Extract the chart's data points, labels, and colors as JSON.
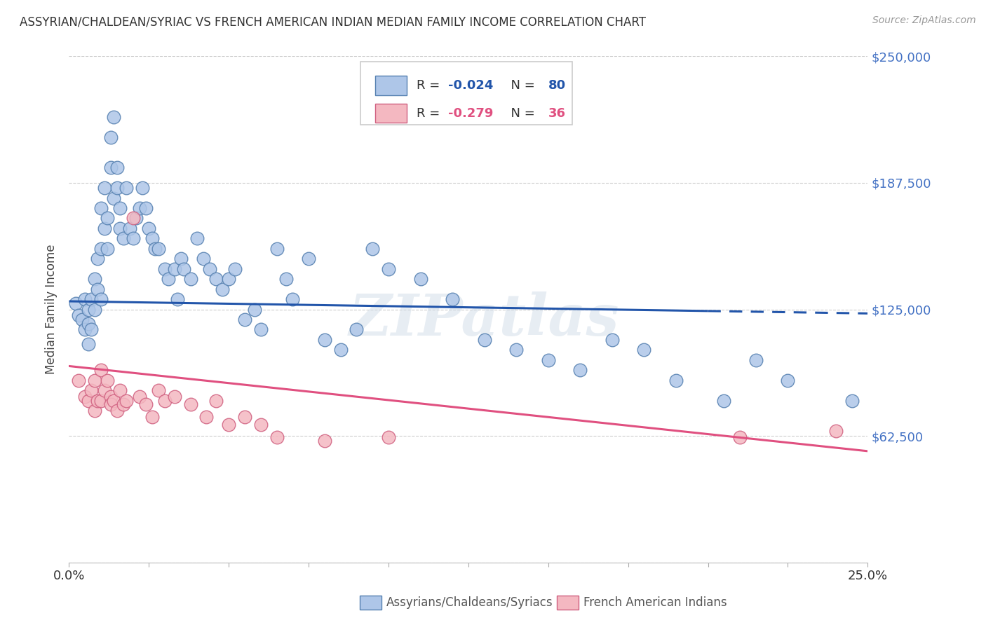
{
  "title": "ASSYRIAN/CHALDEAN/SYRIAC VS FRENCH AMERICAN INDIAN MEDIAN FAMILY INCOME CORRELATION CHART",
  "source": "Source: ZipAtlas.com",
  "ylabel": "Median Family Income",
  "xmin": 0.0,
  "xmax": 0.25,
  "ymin": 0,
  "ymax": 250000,
  "yticks": [
    0,
    62500,
    125000,
    187500,
    250000
  ],
  "ytick_labels": [
    "",
    "$62,500",
    "$125,000",
    "$187,500",
    "$250,000"
  ],
  "xticks": [
    0.0,
    0.025,
    0.05,
    0.075,
    0.1,
    0.125,
    0.15,
    0.175,
    0.2,
    0.225,
    0.25
  ],
  "blue_R": "-0.024",
  "blue_N": "80",
  "pink_R": "-0.279",
  "pink_N": "36",
  "blue_label": "Assyrians/Chaldeans/Syriacs",
  "pink_label": "French American Indians",
  "blue_fill": "#aec6e8",
  "pink_fill": "#f4b8c1",
  "blue_edge": "#5580b0",
  "pink_edge": "#d06080",
  "blue_line": "#2255aa",
  "pink_line": "#e05080",
  "watermark": "ZIPatlas",
  "bg": "#ffffff",
  "blue_trend_x0": 0.0,
  "blue_trend_x1": 0.25,
  "blue_trend_y0": 129000,
  "blue_trend_y1": 123000,
  "pink_trend_x0": 0.0,
  "pink_trend_x1": 0.25,
  "pink_trend_y0": 97000,
  "pink_trend_y1": 55000,
  "blue_x": [
    0.002,
    0.003,
    0.004,
    0.005,
    0.005,
    0.006,
    0.006,
    0.006,
    0.007,
    0.007,
    0.008,
    0.008,
    0.009,
    0.009,
    0.01,
    0.01,
    0.01,
    0.011,
    0.011,
    0.012,
    0.012,
    0.013,
    0.013,
    0.014,
    0.014,
    0.015,
    0.015,
    0.016,
    0.016,
    0.017,
    0.018,
    0.019,
    0.02,
    0.021,
    0.022,
    0.023,
    0.024,
    0.025,
    0.026,
    0.027,
    0.028,
    0.03,
    0.031,
    0.033,
    0.034,
    0.035,
    0.036,
    0.038,
    0.04,
    0.042,
    0.044,
    0.046,
    0.048,
    0.05,
    0.052,
    0.055,
    0.058,
    0.06,
    0.065,
    0.068,
    0.07,
    0.075,
    0.08,
    0.085,
    0.09,
    0.095,
    0.1,
    0.11,
    0.12,
    0.13,
    0.14,
    0.15,
    0.16,
    0.17,
    0.18,
    0.19,
    0.205,
    0.215,
    0.225,
    0.245
  ],
  "blue_y": [
    128000,
    122000,
    120000,
    115000,
    130000,
    125000,
    118000,
    108000,
    130000,
    115000,
    140000,
    125000,
    135000,
    150000,
    130000,
    155000,
    175000,
    165000,
    185000,
    155000,
    170000,
    195000,
    210000,
    180000,
    220000,
    185000,
    195000,
    175000,
    165000,
    160000,
    185000,
    165000,
    160000,
    170000,
    175000,
    185000,
    175000,
    165000,
    160000,
    155000,
    155000,
    145000,
    140000,
    145000,
    130000,
    150000,
    145000,
    140000,
    160000,
    150000,
    145000,
    140000,
    135000,
    140000,
    145000,
    120000,
    125000,
    115000,
    155000,
    140000,
    130000,
    150000,
    110000,
    105000,
    115000,
    155000,
    145000,
    140000,
    130000,
    110000,
    105000,
    100000,
    95000,
    110000,
    105000,
    90000,
    80000,
    100000,
    90000,
    80000
  ],
  "pink_x": [
    0.003,
    0.005,
    0.006,
    0.007,
    0.008,
    0.008,
    0.009,
    0.01,
    0.01,
    0.011,
    0.012,
    0.013,
    0.013,
    0.014,
    0.015,
    0.016,
    0.017,
    0.018,
    0.02,
    0.022,
    0.024,
    0.026,
    0.028,
    0.03,
    0.033,
    0.038,
    0.043,
    0.046,
    0.05,
    0.055,
    0.06,
    0.065,
    0.08,
    0.1,
    0.21,
    0.24
  ],
  "pink_y": [
    90000,
    82000,
    80000,
    85000,
    75000,
    90000,
    80000,
    95000,
    80000,
    85000,
    90000,
    82000,
    78000,
    80000,
    75000,
    85000,
    78000,
    80000,
    170000,
    82000,
    78000,
    72000,
    85000,
    80000,
    82000,
    78000,
    72000,
    80000,
    68000,
    72000,
    68000,
    62000,
    60000,
    62000,
    62000,
    65000
  ]
}
